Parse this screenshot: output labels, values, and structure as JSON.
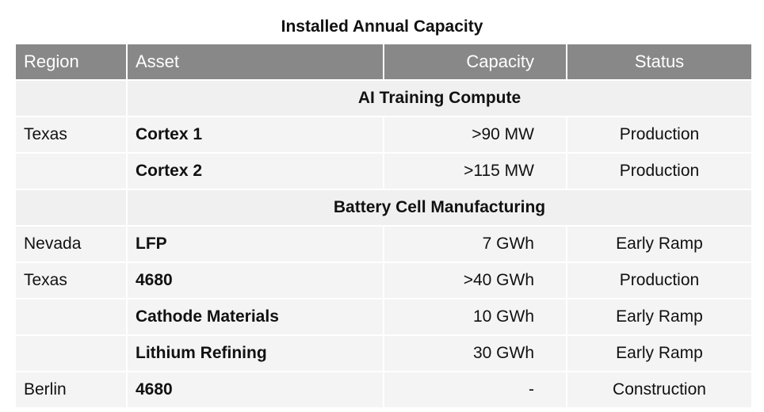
{
  "title": "Installed Annual Capacity",
  "columns": {
    "region": "Region",
    "asset": "Asset",
    "capacity": "Capacity",
    "status": "Status"
  },
  "sections": [
    {
      "name": "AI Training Compute",
      "rows": [
        {
          "region": "Texas",
          "asset": "Cortex 1",
          "capacity": ">90 MW",
          "status": "Production"
        },
        {
          "region": "",
          "asset": "Cortex 2",
          "capacity": ">115 MW",
          "status": "Production"
        }
      ]
    },
    {
      "name": "Battery Cell Manufacturing",
      "rows": [
        {
          "region": "Nevada",
          "asset": "LFP",
          "capacity": "7 GWh",
          "status": "Early Ramp"
        },
        {
          "region": "Texas",
          "asset": "4680",
          "capacity": ">40 GWh",
          "status": "Production"
        },
        {
          "region": "",
          "asset": "Cathode Materials",
          "capacity": "10 GWh",
          "status": "Early Ramp"
        },
        {
          "region": "",
          "asset": "Lithium Refining",
          "capacity": "30 GWh",
          "status": "Early Ramp"
        },
        {
          "region": "Berlin",
          "asset": "4680",
          "capacity": "-",
          "status": "Construction"
        }
      ]
    }
  ]
}
